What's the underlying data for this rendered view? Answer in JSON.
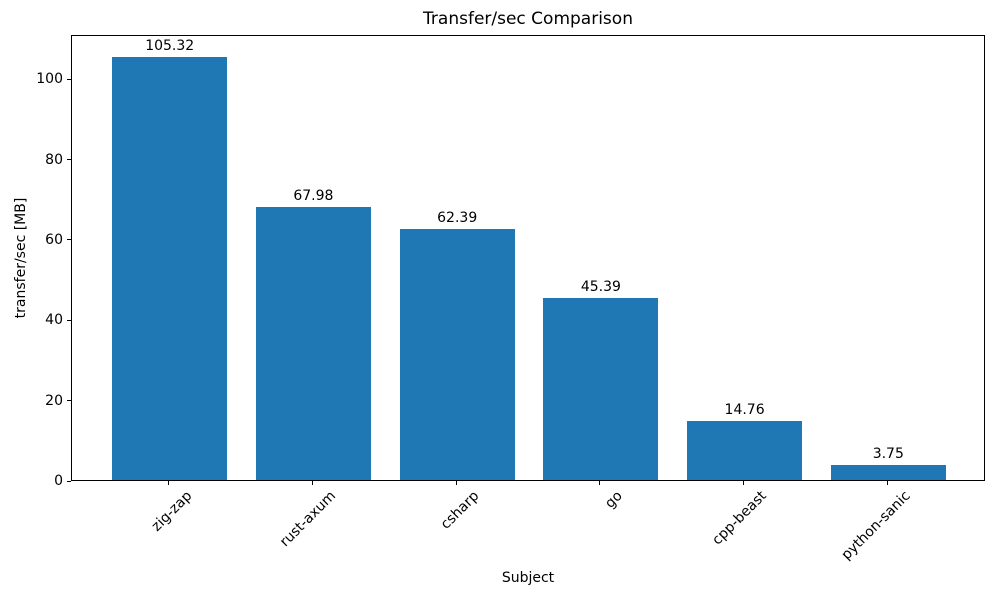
{
  "chart_data": {
    "type": "bar",
    "title": "Transfer/sec Comparison",
    "xlabel": "Subject",
    "ylabel": "transfer/sec [MB]",
    "categories": [
      "zig-zap",
      "rust-axum",
      "csharp",
      "go",
      "cpp-beast",
      "python-sanic"
    ],
    "values": [
      105.32,
      67.98,
      62.39,
      45.39,
      14.76,
      3.75
    ],
    "value_labels": [
      "105.32",
      "67.98",
      "62.39",
      "45.39",
      "14.76",
      "3.75"
    ],
    "yticks": [
      0,
      20,
      40,
      60,
      80,
      100
    ],
    "ylim": [
      0,
      111
    ],
    "bar_color": "#1f77b4",
    "text_color": "#000000",
    "grid": false,
    "legend": "none",
    "bar_width_fraction": 0.8
  }
}
